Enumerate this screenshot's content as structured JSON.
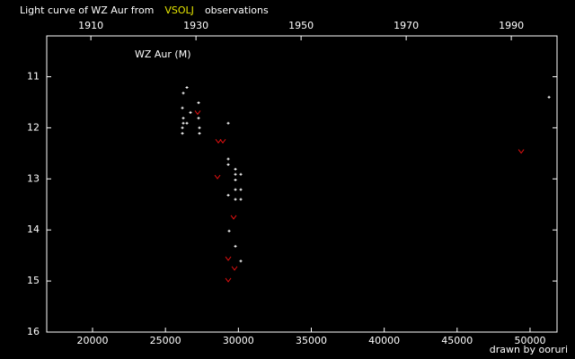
{
  "chart_data": {
    "type": "scatter",
    "title_parts": [
      "Light curve of WZ Aur from",
      "VSOLJ",
      "observations"
    ],
    "title_colors": [
      "#ffffff",
      "#e6e600",
      "#ffffff"
    ],
    "label": "WZ Aur (M)",
    "credit": "drawn by ooruri",
    "credit_color": "#00e5e5",
    "xlim": [
      16858,
      51850
    ],
    "xticks": [
      20000,
      25000,
      30000,
      35000,
      40000,
      45000,
      50000
    ],
    "x2lim": [
      1901.6,
      1998.7
    ],
    "x2ticks": [
      1910,
      1930,
      1950,
      1970,
      1990
    ],
    "ylim": [
      16,
      10.2
    ],
    "yticks": [
      11,
      12,
      13,
      14,
      15,
      16
    ],
    "series": [
      {
        "marker": "plus",
        "color": "#ffffff",
        "x": [
          26470,
          26223,
          26162,
          26716,
          27270,
          26223,
          27270,
          26223,
          26470,
          26162,
          27332,
          26162,
          27332,
          29304,
          29304,
          29304,
          29797,
          29797,
          30166,
          29797,
          29797,
          30166,
          29304,
          29797,
          30166,
          29366,
          29797,
          30166,
          51300
        ],
        "values": [
          11.21,
          11.32,
          11.61,
          11.7,
          11.51,
          11.81,
          11.81,
          11.91,
          11.91,
          12.0,
          12.0,
          12.11,
          12.11,
          11.91,
          12.61,
          12.72,
          12.81,
          12.91,
          12.91,
          13.02,
          13.21,
          13.21,
          13.32,
          13.4,
          13.4,
          14.02,
          14.32,
          14.61,
          11.4
        ]
      },
      {
        "marker": "v",
        "color": "#e01010",
        "x": [
          27209,
          28626,
          28934,
          28565,
          29674,
          29304,
          29736,
          29304,
          49392
        ],
        "values": [
          11.7,
          12.26,
          12.26,
          12.96,
          13.75,
          14.56,
          14.75,
          14.98,
          12.46
        ]
      }
    ]
  }
}
